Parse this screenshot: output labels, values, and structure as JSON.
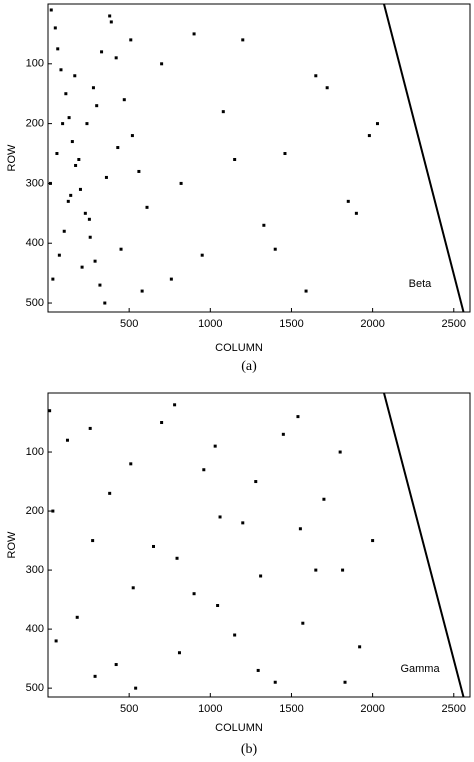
{
  "chart_data": [
    {
      "type": "scatter",
      "caption": "(a)",
      "xlabel": "COLUMN",
      "ylabel": "ROW",
      "annotation": "Beta",
      "color": "#000000",
      "xlim": [
        0,
        2600
      ],
      "ylim": [
        515,
        0
      ],
      "xticks": [
        500,
        1000,
        1500,
        2000,
        2500
      ],
      "yticks": [
        100,
        200,
        300,
        400,
        500
      ],
      "points": {
        "x": [
          20,
          45,
          60,
          80,
          110,
          130,
          150,
          170,
          200,
          230,
          260,
          290,
          320,
          350,
          390,
          420,
          470,
          520,
          560,
          610,
          30,
          70,
          100,
          140,
          190,
          240,
          280,
          330,
          380,
          450,
          510,
          580,
          15,
          55,
          90,
          125,
          165,
          210,
          255,
          300,
          360,
          430,
          700,
          820,
          950,
          1080,
          1200,
          1330,
          1460,
          1590,
          1720,
          1850,
          1980,
          760,
          900,
          1150,
          1400,
          1650,
          1900,
          2030
        ],
        "y": [
          10,
          40,
          75,
          110,
          150,
          190,
          230,
          270,
          310,
          350,
          390,
          430,
          470,
          500,
          30,
          90,
          160,
          220,
          280,
          340,
          460,
          420,
          380,
          320,
          260,
          200,
          140,
          80,
          20,
          410,
          60,
          480,
          300,
          250,
          200,
          330,
          120,
          440,
          360,
          170,
          290,
          240,
          100,
          300,
          420,
          180,
          60,
          370,
          250,
          480,
          140,
          330,
          220,
          460,
          50,
          260,
          410,
          120,
          350,
          200
        ]
      },
      "boundary": {
        "x": [
          2070,
          2560
        ],
        "y": [
          0,
          515
        ]
      }
    },
    {
      "type": "scatter",
      "caption": "(b)",
      "xlabel": "COLUMN",
      "ylabel": "ROW",
      "annotation": "Gamma",
      "color": "#000000",
      "xlim": [
        0,
        2600
      ],
      "ylim": [
        515,
        0
      ],
      "xticks": [
        500,
        1000,
        1500,
        2000,
        2500
      ],
      "yticks": [
        100,
        200,
        300,
        400,
        500
      ],
      "points": {
        "x": [
          10,
          30,
          50,
          260,
          275,
          290,
          510,
          525,
          540,
          780,
          795,
          810,
          1030,
          1045,
          1060,
          1280,
          1295,
          1310,
          1540,
          1555,
          1570,
          1800,
          1815,
          1830,
          120,
          180,
          380,
          420,
          650,
          700,
          900,
          960,
          1150,
          1200,
          1400,
          1450,
          1650,
          1700,
          1920,
          2000
        ],
        "y": [
          30,
          200,
          420,
          60,
          250,
          480,
          120,
          330,
          500,
          20,
          280,
          440,
          90,
          360,
          210,
          150,
          470,
          310,
          40,
          230,
          390,
          100,
          300,
          490,
          80,
          380,
          170,
          460,
          260,
          50,
          340,
          130,
          410,
          220,
          490,
          70,
          300,
          180,
          430,
          250
        ]
      },
      "boundary": {
        "x": [
          2070,
          2560
        ],
        "y": [
          0,
          515
        ]
      }
    }
  ]
}
